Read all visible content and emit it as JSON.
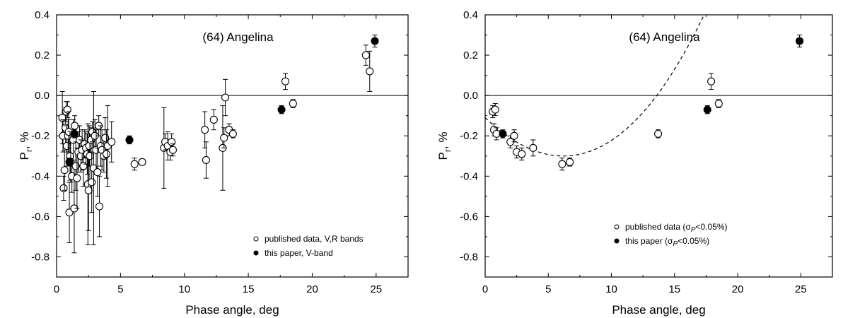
{
  "chart_data": [
    {
      "type": "scatter",
      "title": "(64) Angelina",
      "xlabel": "Phase angle, deg",
      "ylabel": "P",
      "ylabel_sub": "r",
      "ylabel_suffix": ", %",
      "xlim": [
        0,
        27.5
      ],
      "ylim": [
        -0.9,
        0.4
      ],
      "xticks": [
        0,
        5,
        10,
        15,
        20,
        25
      ],
      "yticks": [
        -0.8,
        -0.6,
        -0.4,
        -0.2,
        0.0,
        0.2,
        0.4
      ],
      "ytick_labels": [
        "-0.8",
        "-0.6",
        "-0.4",
        "-0.2",
        "0.0",
        "0.2",
        "0.4"
      ],
      "zero_line": true,
      "series": [
        {
          "name": "published data, V,R bands",
          "marker": "open",
          "points": [
            {
              "x": 0.45,
              "y": -0.11,
              "err": 0.13
            },
            {
              "x": 0.5,
              "y": -0.2,
              "err": 0.08
            },
            {
              "x": 0.55,
              "y": -0.46,
              "err": 0.06
            },
            {
              "x": 0.62,
              "y": -0.37,
              "err": 0.1
            },
            {
              "x": 0.7,
              "y": -0.16,
              "err": 0.1
            },
            {
              "x": 0.75,
              "y": -0.08,
              "err": 0.05
            },
            {
              "x": 0.8,
              "y": -0.25,
              "err": 0.1
            },
            {
              "x": 0.85,
              "y": -0.07,
              "err": 0.04
            },
            {
              "x": 0.9,
              "y": -0.2,
              "err": 0.08
            },
            {
              "x": 0.95,
              "y": -0.18,
              "err": 0.1
            },
            {
              "x": 1.0,
              "y": -0.58,
              "err": 0.15
            },
            {
              "x": 1.05,
              "y": -0.3,
              "err": 0.12
            },
            {
              "x": 1.1,
              "y": -0.33,
              "err": 0.1
            },
            {
              "x": 1.2,
              "y": -0.4,
              "err": 0.08
            },
            {
              "x": 1.3,
              "y": -0.22,
              "err": 0.1
            },
            {
              "x": 1.38,
              "y": -0.56,
              "err": 0.22
            },
            {
              "x": 1.42,
              "y": -0.15,
              "err": 0.05
            },
            {
              "x": 1.5,
              "y": -0.35,
              "err": 0.12
            },
            {
              "x": 1.6,
              "y": -0.41,
              "err": 0.15
            },
            {
              "x": 1.7,
              "y": -0.28,
              "err": 0.1
            },
            {
              "x": 1.8,
              "y": -0.22,
              "err": 0.07
            },
            {
              "x": 1.9,
              "y": -0.3,
              "err": 0.08
            },
            {
              "x": 2.0,
              "y": -0.27,
              "err": 0.1
            },
            {
              "x": 2.1,
              "y": -0.35,
              "err": 0.1
            },
            {
              "x": 2.2,
              "y": -0.24,
              "err": 0.07
            },
            {
              "x": 2.3,
              "y": -0.26,
              "err": 0.08
            },
            {
              "x": 2.4,
              "y": -0.29,
              "err": 0.1
            },
            {
              "x": 2.45,
              "y": -0.44,
              "err": 0.3
            },
            {
              "x": 2.5,
              "y": -0.47,
              "err": 0.2
            },
            {
              "x": 2.55,
              "y": -0.25,
              "err": 0.1
            },
            {
              "x": 2.6,
              "y": -0.3,
              "err": 0.12
            },
            {
              "x": 2.7,
              "y": -0.22,
              "err": 0.06
            },
            {
              "x": 2.75,
              "y": -0.43,
              "err": 0.15
            },
            {
              "x": 2.8,
              "y": -0.18,
              "err": 0.05
            },
            {
              "x": 2.9,
              "y": -0.36,
              "err": 0.38
            },
            {
              "x": 3.0,
              "y": -0.2,
              "err": 0.08
            },
            {
              "x": 3.1,
              "y": -0.27,
              "err": 0.1
            },
            {
              "x": 3.2,
              "y": -0.38,
              "err": 0.12
            },
            {
              "x": 3.3,
              "y": -0.15,
              "err": 0.05
            },
            {
              "x": 3.35,
              "y": -0.55,
              "err": 0.15
            },
            {
              "x": 3.45,
              "y": -0.25,
              "err": 0.1
            },
            {
              "x": 3.55,
              "y": -0.27,
              "err": 0.1
            },
            {
              "x": 3.7,
              "y": -0.3,
              "err": 0.08
            },
            {
              "x": 3.8,
              "y": -0.21,
              "err": 0.1
            },
            {
              "x": 3.9,
              "y": -0.29,
              "err": 0.12
            },
            {
              "x": 4.0,
              "y": -0.25,
              "err": 0.2
            },
            {
              "x": 4.3,
              "y": -0.23,
              "err": 0.1
            },
            {
              "x": 6.1,
              "y": -0.34,
              "err": 0.03
            },
            {
              "x": 6.7,
              "y": -0.33,
              "err": 0.015
            },
            {
              "x": 8.4,
              "y": -0.26,
              "err": 0.2
            },
            {
              "x": 8.5,
              "y": -0.23,
              "err": 0.04
            },
            {
              "x": 8.7,
              "y": -0.25,
              "err": 0.07
            },
            {
              "x": 8.9,
              "y": -0.28,
              "err": 0.04
            },
            {
              "x": 9.0,
              "y": -0.23,
              "err": 0.04
            },
            {
              "x": 9.1,
              "y": -0.27,
              "err": 0.03
            },
            {
              "x": 11.6,
              "y": -0.17,
              "err": 0.09
            },
            {
              "x": 11.7,
              "y": -0.32,
              "err": 0.09
            },
            {
              "x": 12.3,
              "y": -0.12,
              "err": 0.05
            },
            {
              "x": 13.0,
              "y": -0.26,
              "err": 0.21
            },
            {
              "x": 13.1,
              "y": -0.21,
              "err": 0.05
            },
            {
              "x": 13.2,
              "y": -0.01,
              "err": 0.09
            },
            {
              "x": 13.5,
              "y": -0.17,
              "err": 0.03
            },
            {
              "x": 13.8,
              "y": -0.19,
              "err": 0.02
            },
            {
              "x": 17.9,
              "y": 0.07,
              "err": 0.04
            },
            {
              "x": 18.5,
              "y": -0.04,
              "err": 0.02
            },
            {
              "x": 24.2,
              "y": 0.2,
              "err": 0.05
            },
            {
              "x": 24.5,
              "y": 0.12,
              "err": 0.1
            }
          ]
        },
        {
          "name": "this paper, V-band",
          "marker": "filled",
          "points": [
            {
              "x": 1.0,
              "y": -0.33,
              "err": 0.02
            },
            {
              "x": 1.4,
              "y": -0.19,
              "err": 0.02
            },
            {
              "x": 5.7,
              "y": -0.22,
              "err": 0.02
            },
            {
              "x": 17.6,
              "y": -0.07,
              "err": 0.02
            },
            {
              "x": 24.9,
              "y": 0.27,
              "err": 0.03
            }
          ]
        }
      ],
      "legend_position": "bottom-right"
    },
    {
      "type": "scatter",
      "title": "(64) Angelina",
      "xlabel": "Phase angle, deg",
      "ylabel": "P",
      "ylabel_sub": "r",
      "ylabel_suffix": ", %",
      "xlim": [
        0,
        27.5
      ],
      "ylim": [
        -0.9,
        0.4
      ],
      "xticks": [
        0,
        5,
        10,
        15,
        20,
        25
      ],
      "yticks": [
        -0.8,
        -0.6,
        -0.4,
        -0.2,
        0.0,
        0.2,
        0.4
      ],
      "ytick_labels": [
        "-0.8",
        "-0.6",
        "-0.4",
        "-0.2",
        "0.0",
        "0.2",
        "0.4"
      ],
      "zero_line": true,
      "fit_curve": true,
      "series": [
        {
          "name": "published data (",
          "legend_sigma": "σ",
          "legend_sub": "P",
          "legend_tail": "<0.05%)",
          "marker": "open",
          "points": [
            {
              "x": 0.6,
              "y": -0.08,
              "err": 0.03
            },
            {
              "x": 0.7,
              "y": -0.17,
              "err": 0.03
            },
            {
              "x": 0.8,
              "y": -0.07,
              "err": 0.03
            },
            {
              "x": 0.9,
              "y": -0.19,
              "err": 0.03
            },
            {
              "x": 2.0,
              "y": -0.23,
              "err": 0.03
            },
            {
              "x": 2.3,
              "y": -0.2,
              "err": 0.03
            },
            {
              "x": 2.5,
              "y": -0.28,
              "err": 0.03
            },
            {
              "x": 2.9,
              "y": -0.29,
              "err": 0.03
            },
            {
              "x": 3.8,
              "y": -0.26,
              "err": 0.04
            },
            {
              "x": 6.1,
              "y": -0.34,
              "err": 0.03
            },
            {
              "x": 6.7,
              "y": -0.33,
              "err": 0.02
            },
            {
              "x": 13.7,
              "y": -0.19,
              "err": 0.02
            },
            {
              "x": 17.9,
              "y": 0.07,
              "err": 0.04
            },
            {
              "x": 18.5,
              "y": -0.04,
              "err": 0.02
            }
          ]
        },
        {
          "name": "this paper (",
          "legend_sigma": "σ",
          "legend_sub": "P",
          "legend_tail": "<0.05%)",
          "marker": "filled",
          "points": [
            {
              "x": 1.4,
              "y": -0.19,
              "err": 0.02
            },
            {
              "x": 17.6,
              "y": -0.07,
              "err": 0.02
            },
            {
              "x": 24.9,
              "y": 0.27,
              "err": 0.03
            }
          ]
        }
      ],
      "legend_position": "bottom-right"
    }
  ]
}
